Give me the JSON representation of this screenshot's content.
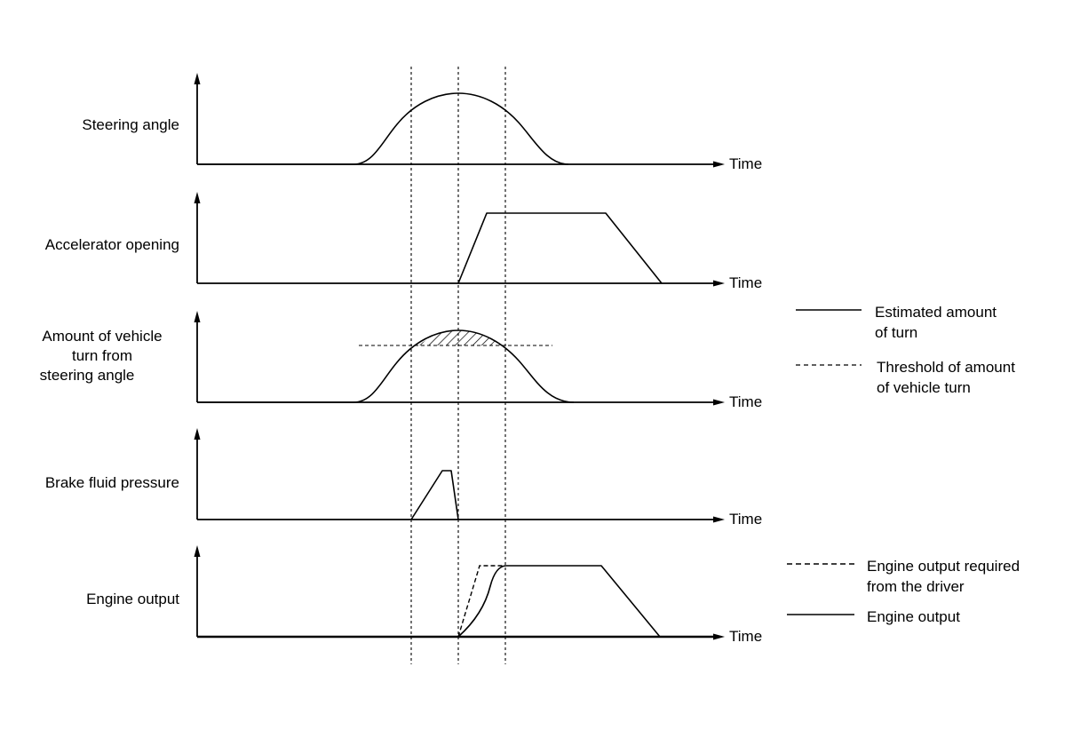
{
  "panels": [
    {
      "label_lines": [
        "Steering angle"
      ],
      "axis_label": "Time"
    },
    {
      "label_lines": [
        "Accelerator opening"
      ],
      "axis_label": "Time"
    },
    {
      "label_lines": [
        "Amount of vehicle",
        "turn from",
        "steering angle"
      ],
      "axis_label": "Time"
    },
    {
      "label_lines": [
        "Brake fluid pressure"
      ],
      "axis_label": "Time"
    },
    {
      "label_lines": [
        "Engine output"
      ],
      "axis_label": "Time"
    }
  ],
  "legend_turn": [
    {
      "style": "solid",
      "lines": [
        "Estimated amount",
        "of turn"
      ]
    },
    {
      "style": "dashed",
      "lines": [
        "Threshold of amount",
        "of vehicle turn"
      ]
    }
  ],
  "legend_engine": [
    {
      "style": "dashed",
      "lines": [
        "Engine output required",
        "from the driver"
      ]
    },
    {
      "style": "solid",
      "lines": [
        "Engine output"
      ]
    }
  ]
}
